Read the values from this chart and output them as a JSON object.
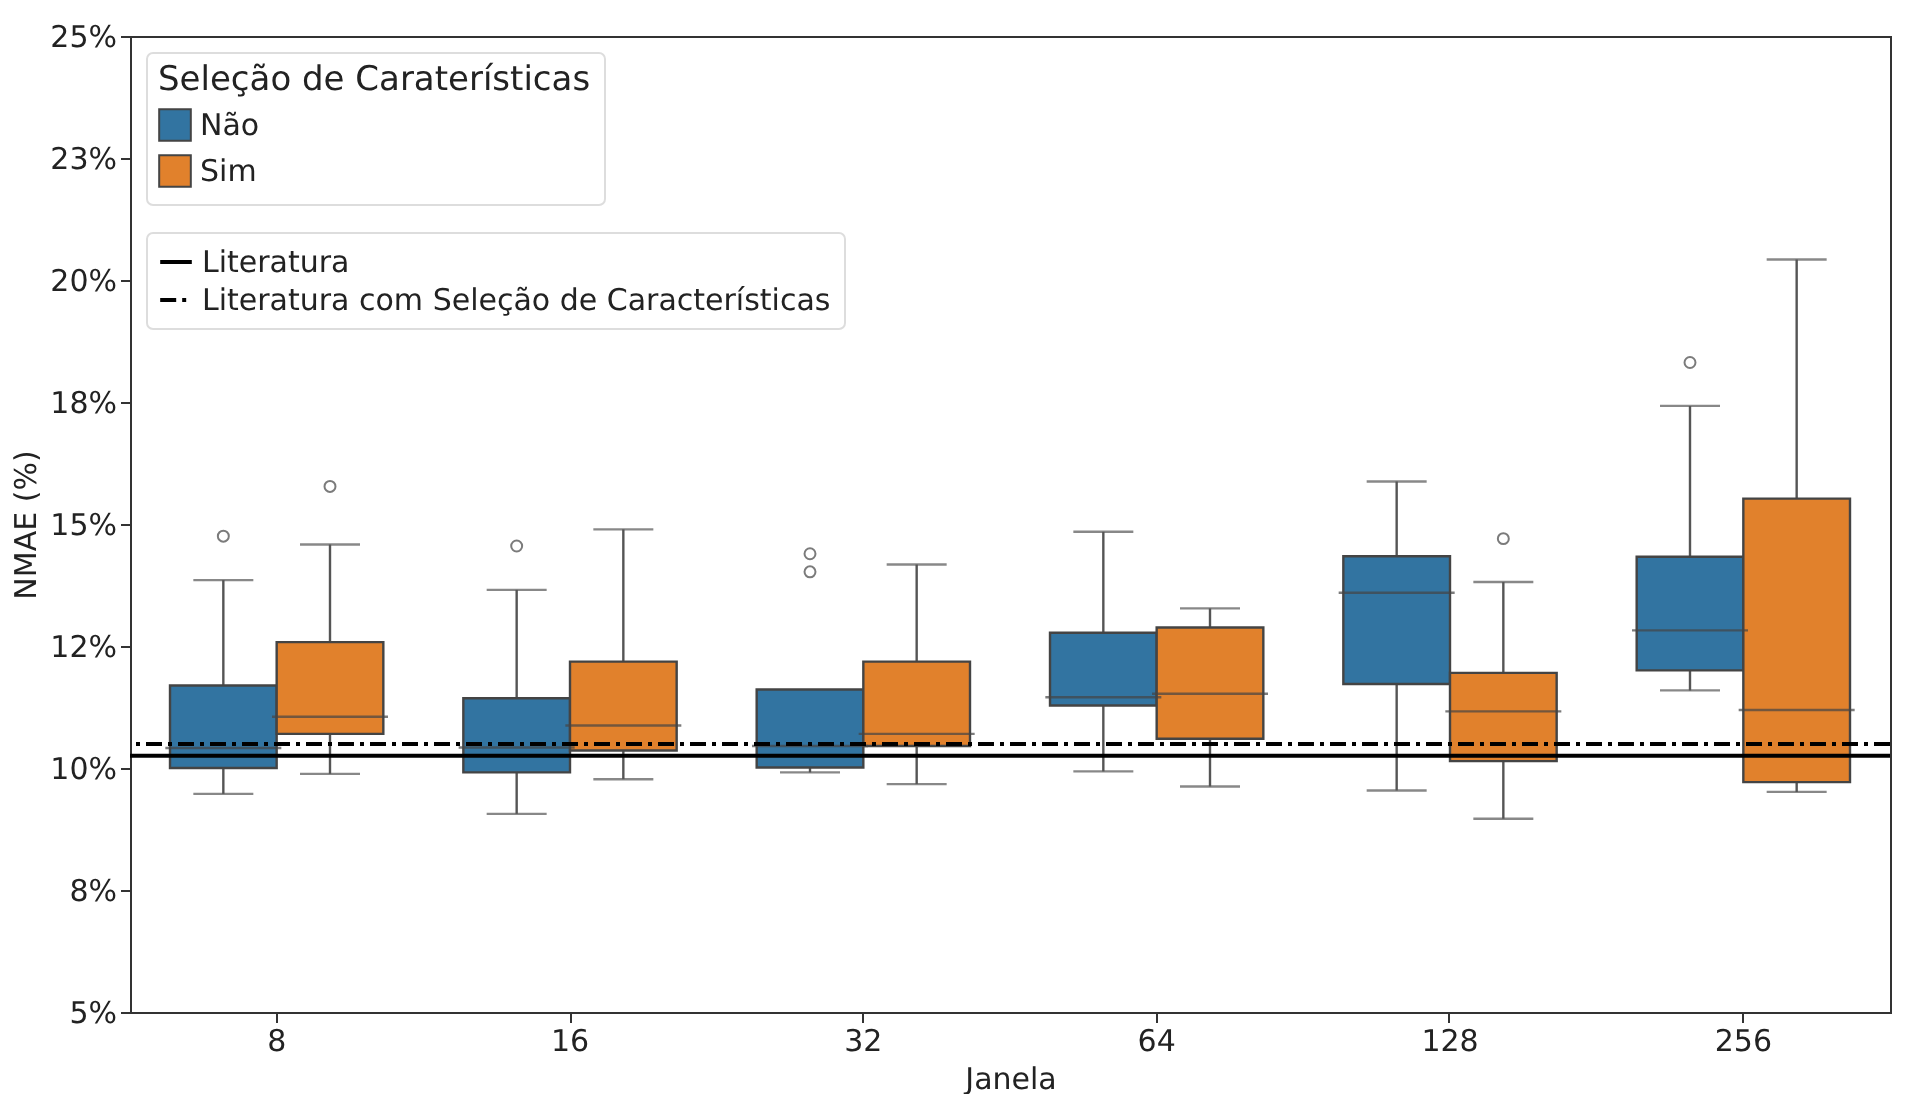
{
  "chart_data": {
    "type": "box",
    "xlabel": "Janela",
    "ylabel": "NMAE (%)",
    "legend_title": "Seleção de Caraterísticas",
    "legend": "top left",
    "grid": false,
    "categories": [
      "8",
      "16",
      "32",
      "64",
      "128",
      "256"
    ],
    "ylim": [
      5,
      25
    ],
    "yticks": [
      {
        "value": 5,
        "label": "5%"
      },
      {
        "value": 7.5,
        "label": "8%"
      },
      {
        "value": 10,
        "label": "10%"
      },
      {
        "value": 12.5,
        "label": "12%"
      },
      {
        "value": 15,
        "label": "15%"
      },
      {
        "value": 17.5,
        "label": "18%"
      },
      {
        "value": 20,
        "label": "20%"
      },
      {
        "value": 22.5,
        "label": "23%"
      },
      {
        "value": 25,
        "label": "25%"
      }
    ],
    "series": [
      {
        "name": "Não",
        "color": "#3274a1",
        "boxes": [
          {
            "low": 9.47,
            "q1": 10.0,
            "median": 10.41,
            "q3": 11.69,
            "high": 13.85,
            "outliers": [
              14.75
            ]
          },
          {
            "low": 9.06,
            "q1": 9.91,
            "median": 10.42,
            "q3": 11.43,
            "high": 13.65,
            "outliers": [
              14.55
            ]
          },
          {
            "low": 9.91,
            "q1": 10.01,
            "median": 10.45,
            "q3": 11.61,
            "high": 11.61,
            "outliers": [
              14.02,
              14.39
            ]
          },
          {
            "low": 9.93,
            "q1": 11.28,
            "median": 11.45,
            "q3": 12.77,
            "high": 14.84
          },
          {
            "low": 9.54,
            "q1": 11.72,
            "median": 13.59,
            "q3": 14.34,
            "high": 15.87
          },
          {
            "low": 11.59,
            "q1": 12.0,
            "median": 12.82,
            "q3": 14.33,
            "high": 17.42,
            "outliers": [
              18.31
            ]
          }
        ]
      },
      {
        "name": "Sim",
        "color": "#e1812c",
        "boxes": [
          {
            "low": 9.88,
            "q1": 10.7,
            "median": 11.05,
            "q3": 12.58,
            "high": 14.58,
            "outliers": [
              15.77
            ]
          },
          {
            "low": 9.77,
            "q1": 10.36,
            "median": 10.87,
            "q3": 12.18,
            "high": 14.89
          },
          {
            "low": 9.67,
            "q1": 10.45,
            "median": 10.7,
            "q3": 12.18,
            "high": 14.17
          },
          {
            "low": 9.62,
            "q1": 10.6,
            "median": 11.52,
            "q3": 12.88,
            "high": 13.27
          },
          {
            "low": 8.96,
            "q1": 10.14,
            "median": 11.16,
            "q3": 11.95,
            "high": 13.81,
            "outliers": [
              14.7
            ]
          },
          {
            "low": 9.51,
            "q1": 9.71,
            "median": 11.19,
            "q3": 15.52,
            "high": 20.42
          }
        ]
      }
    ],
    "ref_lines": [
      {
        "axis": "y",
        "value": 10.25,
        "label": "Literatura",
        "color": "#000000",
        "line_style": "solid"
      },
      {
        "axis": "y",
        "value": 10.49,
        "label": "Literatura com Seleção de Características",
        "color": "#000000",
        "line_style": "dashdot"
      }
    ]
  }
}
